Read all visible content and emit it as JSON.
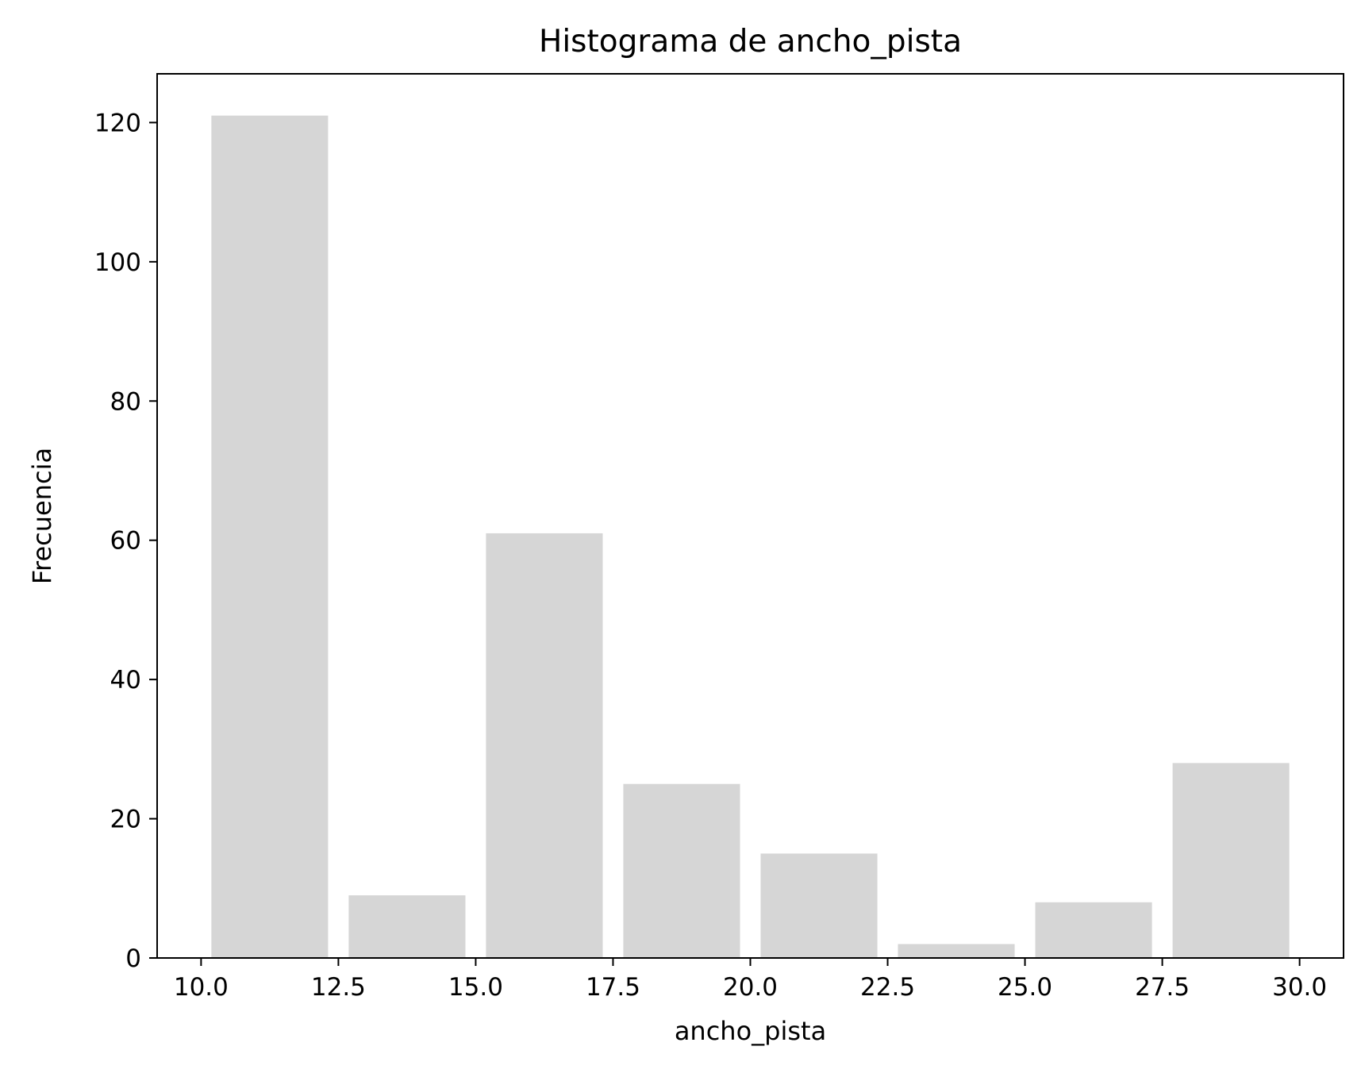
{
  "chart_data": {
    "type": "bar",
    "title": "Histograma de ancho_pista",
    "xlabel": "ancho_pista",
    "ylabel": "Frecuencia",
    "bins": [
      {
        "start": 10.0,
        "end": 12.5,
        "value": 121
      },
      {
        "start": 12.5,
        "end": 15.0,
        "value": 9
      },
      {
        "start": 15.0,
        "end": 17.5,
        "value": 61
      },
      {
        "start": 17.5,
        "end": 20.0,
        "value": 25
      },
      {
        "start": 20.0,
        "end": 22.5,
        "value": 15
      },
      {
        "start": 22.5,
        "end": 25.0,
        "value": 2
      },
      {
        "start": 25.0,
        "end": 27.5,
        "value": 8
      },
      {
        "start": 27.5,
        "end": 30.0,
        "value": 28
      }
    ],
    "xlim": [
      9.2,
      30.8
    ],
    "ylim": [
      0,
      127
    ],
    "xticks": [
      10.0,
      12.5,
      15.0,
      17.5,
      20.0,
      22.5,
      25.0,
      27.5,
      30.0
    ],
    "xtick_labels": [
      "10.0",
      "12.5",
      "15.0",
      "17.5",
      "20.0",
      "22.5",
      "25.0",
      "27.5",
      "30.0"
    ],
    "yticks": [
      0,
      20,
      40,
      60,
      80,
      100,
      120
    ],
    "ytick_labels": [
      "0",
      "20",
      "40",
      "60",
      "80",
      "100",
      "120"
    ],
    "bar_color": "#d6d6d6",
    "grid": false,
    "legend": "none"
  }
}
